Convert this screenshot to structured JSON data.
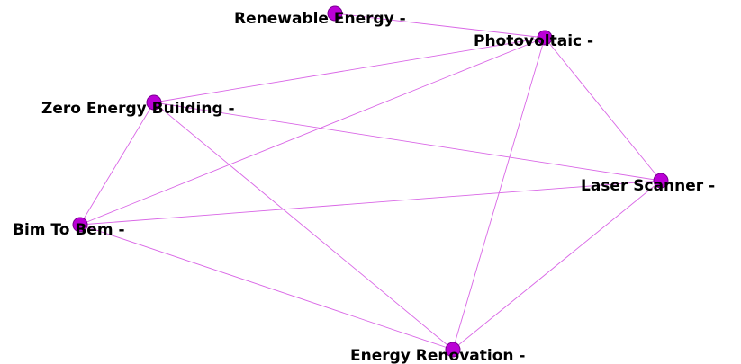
{
  "graph": {
    "edge_color": "#d966e6",
    "node_color": "#bb00d6",
    "nodes": [
      {
        "id": "renewable-energy",
        "label": "Renewable Energy -"
      },
      {
        "id": "photovoltaic",
        "label": "Photovoltaic -"
      },
      {
        "id": "zero-energy-building",
        "label": "Zero Energy Building -"
      },
      {
        "id": "laser-scanner",
        "label": "Laser Scanner -"
      },
      {
        "id": "bim-to-bem",
        "label": "Bim To Bem -"
      },
      {
        "id": "energy-renovation",
        "label": "Energy Renovation -"
      }
    ],
    "edges": [
      [
        "renewable-energy",
        "photovoltaic"
      ],
      [
        "photovoltaic",
        "zero-energy-building"
      ],
      [
        "photovoltaic",
        "bim-to-bem"
      ],
      [
        "photovoltaic",
        "laser-scanner"
      ],
      [
        "photovoltaic",
        "energy-renovation"
      ],
      [
        "zero-energy-building",
        "bim-to-bem"
      ],
      [
        "zero-energy-building",
        "laser-scanner"
      ],
      [
        "zero-energy-building",
        "energy-renovation"
      ],
      [
        "bim-to-bem",
        "laser-scanner"
      ],
      [
        "bim-to-bem",
        "energy-renovation"
      ],
      [
        "laser-scanner",
        "energy-renovation"
      ]
    ]
  }
}
